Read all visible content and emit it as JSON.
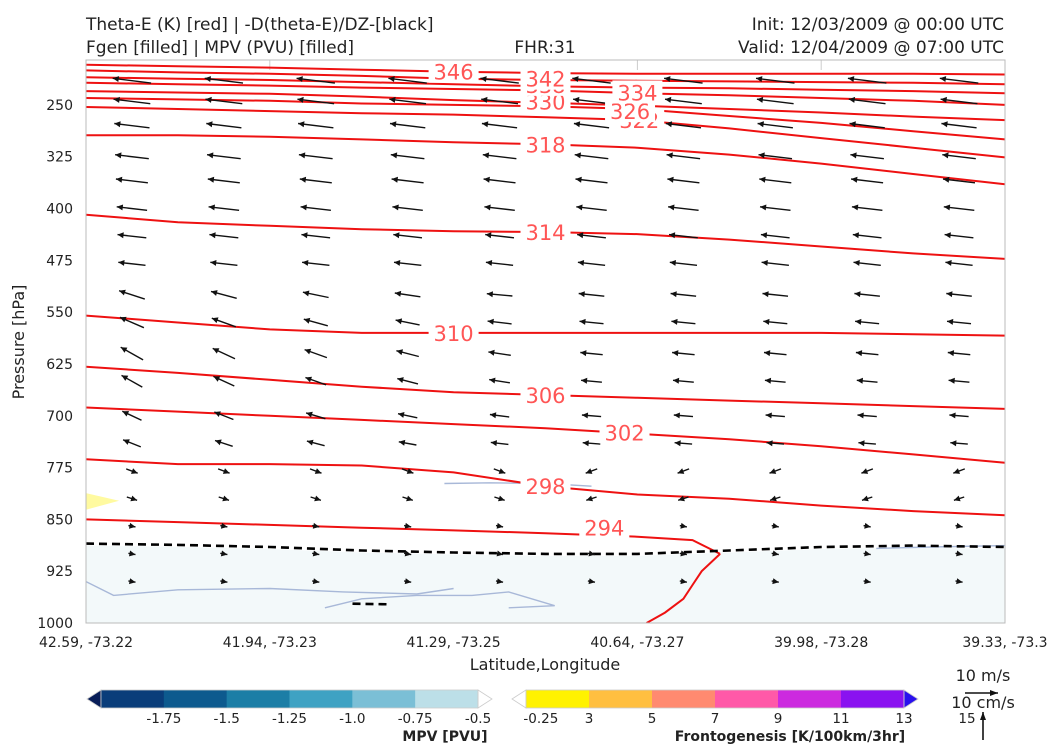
{
  "header": {
    "title_line1": "Theta-E (K) [red] | -D(theta-E)/DZ-[black]",
    "title_line2": "Fgen [filled] | MPV (PVU) [filled]",
    "fhr": "FHR:31",
    "init": "Init: 12/03/2009 @ 00:00 UTC",
    "valid": "Valid: 12/04/2009 @ 07:00 UTC"
  },
  "chart_data": {
    "type": "cross-section",
    "xlabel": "Latitude,Longitude",
    "ylabel": "Pressure [hPa]",
    "x_ticks": [
      "42.59, -73.22",
      "41.94, -73.23",
      "41.29, -73.25",
      "40.64, -73.27",
      "39.98, -73.28",
      "39.33, -73.3"
    ],
    "y_ticks": [
      250,
      325,
      400,
      475,
      550,
      625,
      700,
      775,
      850,
      925,
      1000
    ],
    "ylim": [
      1000,
      185
    ],
    "y_reversed": true,
    "x_points": [
      0,
      1,
      2,
      3,
      4,
      5
    ],
    "theta_e_contours": [
      {
        "level": 294,
        "x": [
          0,
          0.5,
          1.0,
          1.5,
          2.0,
          2.5,
          3.0,
          3.3,
          3.45
        ],
        "p": [
          850,
          854,
          858,
          862,
          866,
          870,
          875,
          880,
          900
        ]
      },
      {
        "level": 298,
        "x": [
          0,
          0.5,
          1.0,
          1.5,
          2.0,
          2.5,
          3.0,
          3.5,
          4.0,
          4.5,
          5.0
        ],
        "p": [
          763,
          770,
          770,
          772,
          782,
          802,
          814,
          820,
          830,
          838,
          844
        ]
      },
      {
        "level": 302,
        "x": [
          0,
          0.5,
          1.0,
          1.5,
          2.0,
          2.5,
          3.0,
          3.5,
          4.0,
          4.5,
          5.0
        ],
        "p": [
          688,
          694,
          700,
          706,
          712,
          718,
          726,
          734,
          744,
          756,
          768
        ]
      },
      {
        "level": 306,
        "x": [
          0,
          0.5,
          1.0,
          1.5,
          2.0,
          2.5,
          3.0,
          3.5,
          4.0,
          4.5,
          5.0
        ],
        "p": [
          629,
          638,
          648,
          658,
          666,
          670,
          674,
          678,
          682,
          686,
          690
        ]
      },
      {
        "level": 310,
        "x": [
          0,
          0.5,
          1.0,
          1.5,
          2.0,
          2.5,
          3.0,
          3.5,
          4.0,
          4.5,
          5.0
        ],
        "p": [
          555,
          565,
          575,
          580,
          580,
          580,
          580,
          580,
          580,
          582,
          584
        ]
      },
      {
        "level": 314,
        "x": [
          0,
          0.5,
          1.0,
          1.5,
          2.0,
          2.5,
          3.0,
          3.5,
          4.0,
          4.5,
          5.0
        ],
        "p": [
          409,
          420,
          425,
          430,
          433,
          434,
          437,
          445,
          455,
          465,
          473
        ]
      },
      {
        "level": 318,
        "x": [
          0,
          0.5,
          1.0,
          1.5,
          2.0,
          2.5,
          3.0,
          3.5,
          4.0,
          4.5,
          5.0
        ],
        "p": [
          294,
          294,
          296,
          300,
          304,
          307,
          312,
          322,
          335,
          350,
          365
        ]
      },
      {
        "level": 322,
        "x": [
          0,
          0.5,
          1.0,
          1.5,
          2.0,
          2.5,
          3.0,
          3.5,
          4.0,
          4.5,
          5.0
        ],
        "p": [
          253,
          256,
          259,
          262,
          264,
          268,
          272,
          284,
          298,
          312,
          326
        ]
      },
      {
        "level": 326,
        "x": [
          0,
          0.5,
          1.0,
          1.5,
          2.0,
          2.5,
          3.0,
          3.5,
          4.0,
          4.5,
          5.0
        ],
        "p": [
          240,
          242,
          244,
          248,
          250,
          252,
          256,
          266,
          276,
          288,
          300
        ]
      },
      {
        "level": 330,
        "x": [
          0,
          0.5,
          1.0,
          1.5,
          2.0,
          2.5,
          3.0,
          3.5,
          4.0,
          4.5,
          5.0
        ],
        "p": [
          230,
          232,
          234,
          238,
          243,
          247,
          251,
          256,
          261,
          267,
          272
        ]
      },
      {
        "level": 334,
        "x": [
          0,
          0.5,
          1.0,
          1.5,
          2.0,
          2.5,
          3.0,
          3.5,
          4.0,
          4.5,
          5.0
        ],
        "p": [
          218,
          220,
          222,
          225,
          227,
          229,
          233,
          236,
          240,
          244,
          250
        ]
      },
      {
        "level": 338,
        "x": [
          0,
          0.5,
          1.0,
          1.5,
          2.0,
          2.5,
          3.0,
          3.5,
          4.0,
          4.5,
          5.0
        ],
        "p": [
          210,
          212,
          214,
          217,
          220,
          223,
          225,
          226,
          228,
          230,
          233
        ]
      },
      {
        "level": 342,
        "x": [
          0,
          0.5,
          1.0,
          1.5,
          2.0,
          2.5,
          3.0,
          3.5,
          4.0,
          4.5,
          5.0
        ],
        "p": [
          200,
          203,
          205,
          208,
          212,
          214,
          215,
          216,
          217,
          218,
          220
        ]
      },
      {
        "level": 346,
        "x": [
          0,
          0.5,
          1.0,
          1.5,
          2.0,
          2.5,
          3.0,
          3.5,
          4.0,
          4.5,
          5.0
        ],
        "p": [
          192,
          194,
          196,
          199,
          202,
          204,
          205,
          205,
          205,
          205,
          206
        ]
      }
    ],
    "contour_labels": [
      {
        "text": "294",
        "x": 2.82,
        "p": 862
      },
      {
        "text": "298",
        "x": 2.5,
        "p": 802
      },
      {
        "text": "302",
        "x": 2.93,
        "p": 724
      },
      {
        "text": "306",
        "x": 2.5,
        "p": 670
      },
      {
        "text": "310",
        "x": 2.0,
        "p": 580
      },
      {
        "text": "314",
        "x": 2.5,
        "p": 434
      },
      {
        "text": "318",
        "x": 2.5,
        "p": 307
      },
      {
        "text": "322",
        "x": 3.01,
        "p": 272
      },
      {
        "text": "326",
        "x": 2.96,
        "p": 259
      },
      {
        "text": "330",
        "x": 2.5,
        "p": 245
      },
      {
        "text": "334",
        "x": 3.0,
        "p": 232
      },
      {
        "text": "338",
        "x": 2.5,
        "p": 221
      },
      {
        "text": "342",
        "x": 2.5,
        "p": 212
      },
      {
        "text": "346",
        "x": 2.0,
        "p": 202
      }
    ],
    "stability_line_dashed": {
      "x": [
        0,
        0.5,
        1.0,
        1.5,
        2.0,
        2.5,
        3.0,
        3.5,
        4.0,
        4.5,
        5.0
      ],
      "p": [
        885,
        887,
        890,
        895,
        898,
        900,
        900,
        895,
        890,
        888,
        890
      ]
    },
    "mpv_region_level": -0.25,
    "fgen_region_level": 3,
    "wind_barbs": {
      "rows_p": [
        215,
        245,
        280,
        325,
        360,
        400,
        440,
        480,
        525,
        565,
        610,
        650,
        700,
        740,
        780,
        820,
        860,
        900,
        940
      ],
      "cols_x": [
        0.25,
        0.75,
        1.25,
        1.75,
        2.25,
        2.75,
        3.25,
        3.75,
        4.25,
        4.75
      ],
      "u_base": -12,
      "v_top": 1.5
    },
    "colorbar_mpv": {
      "label": "MPV [PVU]",
      "ticks": [
        "-1.75",
        "-1.5",
        "-1.25",
        "-1.0",
        "-0.75",
        "-0.5",
        "-0.25"
      ],
      "colors": [
        "#081d58",
        "#0a3d7a",
        "#0d5a8e",
        "#1c7ea6",
        "#3fa2c3",
        "#7bbfd6",
        "#bcdfe8",
        "#ffffff"
      ]
    },
    "colorbar_fgen": {
      "label": "Frontogenesis [K/100km/3hr]",
      "ticks": [
        "3",
        "5",
        "7",
        "9",
        "11",
        "13",
        "15"
      ],
      "colors": [
        "#ffffff",
        "#fff200",
        "#ffbf40",
        "#ff8a70",
        "#ff59a8",
        "#cc2adf",
        "#8a12f0",
        "#2a10ee"
      ]
    },
    "reference_vectors": {
      "horizontal": "10 m/s",
      "vertical": "10 cm/s"
    }
  },
  "colors": {
    "theta_e": "#ee1111",
    "theta_e_label": "#ff5555",
    "dashed": "#000000",
    "mpv_fill": "#f3f9fa",
    "mpv_edge": "#a8b8d8",
    "fgen_fill": "#fffaa0",
    "arrow": "#111111",
    "grid": "#cccccc"
  }
}
